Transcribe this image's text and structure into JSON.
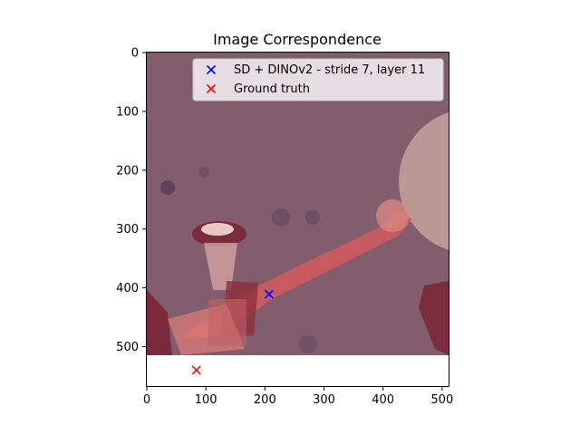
{
  "chart_data": {
    "type": "scatter",
    "title": "Image Correspondence",
    "xlabel": "",
    "ylabel": "",
    "xlim": [
      0,
      511
    ],
    "ylim": [
      567,
      0
    ],
    "y_inverted": true,
    "background_image": {
      "extent_x": [
        0,
        511
      ],
      "extent_y": [
        0,
        511
      ],
      "description": "photo with red/pink tinted overlay of a thin stick-like shape"
    },
    "x_ticks": [
      "0",
      "100",
      "200",
      "300",
      "400",
      "500"
    ],
    "y_ticks": [
      "0",
      "100",
      "200",
      "300",
      "400",
      "500"
    ],
    "x_tick_values": [
      0,
      100,
      200,
      300,
      400,
      500
    ],
    "y_tick_values": [
      0,
      100,
      200,
      300,
      400,
      500
    ],
    "legend_position": "top-right",
    "grid": false,
    "series": [
      {
        "name": "SD + DINOv2 - stride 7, layer 11",
        "marker": "x",
        "color": "#0000ff",
        "points": [
          [
            207,
            411
          ]
        ]
      },
      {
        "name": "Ground truth",
        "marker": "x",
        "color": "#ff0000",
        "points": [
          [
            84,
            540
          ]
        ]
      }
    ]
  }
}
